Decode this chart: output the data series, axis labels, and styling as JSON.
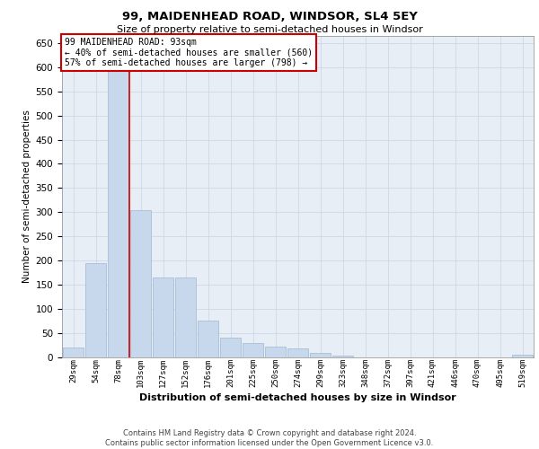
{
  "title": "99, MAIDENHEAD ROAD, WINDSOR, SL4 5EY",
  "subtitle": "Size of property relative to semi-detached houses in Windsor",
  "xlabel": "Distribution of semi-detached houses by size in Windsor",
  "ylabel": "Number of semi-detached properties",
  "footer_line1": "Contains HM Land Registry data © Crown copyright and database right 2024.",
  "footer_line2": "Contains public sector information licensed under the Open Government Licence v3.0.",
  "annotation_title": "99 MAIDENHEAD ROAD: 93sqm",
  "annotation_line1": "← 40% of semi-detached houses are smaller (560)",
  "annotation_line2": "57% of semi-detached houses are larger (798) →",
  "bar_color": "#c8d8ec",
  "bar_edge_color": "#a0b8d0",
  "vline_color": "#cc0000",
  "annotation_box_edge_color": "#cc0000",
  "background_color": "#ffffff",
  "plot_bg_color": "#e8eef5",
  "grid_color": "#c8d4e4",
  "categories": [
    "29sqm",
    "54sqm",
    "78sqm",
    "103sqm",
    "127sqm",
    "152sqm",
    "176sqm",
    "201sqm",
    "225sqm",
    "250sqm",
    "274sqm",
    "299sqm",
    "323sqm",
    "348sqm",
    "372sqm",
    "397sqm",
    "421sqm",
    "446sqm",
    "470sqm",
    "495sqm",
    "519sqm"
  ],
  "values": [
    20,
    195,
    595,
    305,
    165,
    165,
    75,
    40,
    28,
    22,
    17,
    8,
    3,
    0,
    0,
    0,
    0,
    0,
    0,
    0,
    5
  ],
  "vline_position": 2.5,
  "ylim": [
    0,
    665
  ],
  "yticks": [
    0,
    50,
    100,
    150,
    200,
    250,
    300,
    350,
    400,
    450,
    500,
    550,
    600,
    650
  ],
  "title_fontsize": 9.5,
  "subtitle_fontsize": 8,
  "xlabel_fontsize": 8,
  "ylabel_fontsize": 7.5,
  "tick_fontsize": 7.5,
  "xtick_fontsize": 6.5,
  "annotation_fontsize": 7,
  "footer_fontsize": 6
}
